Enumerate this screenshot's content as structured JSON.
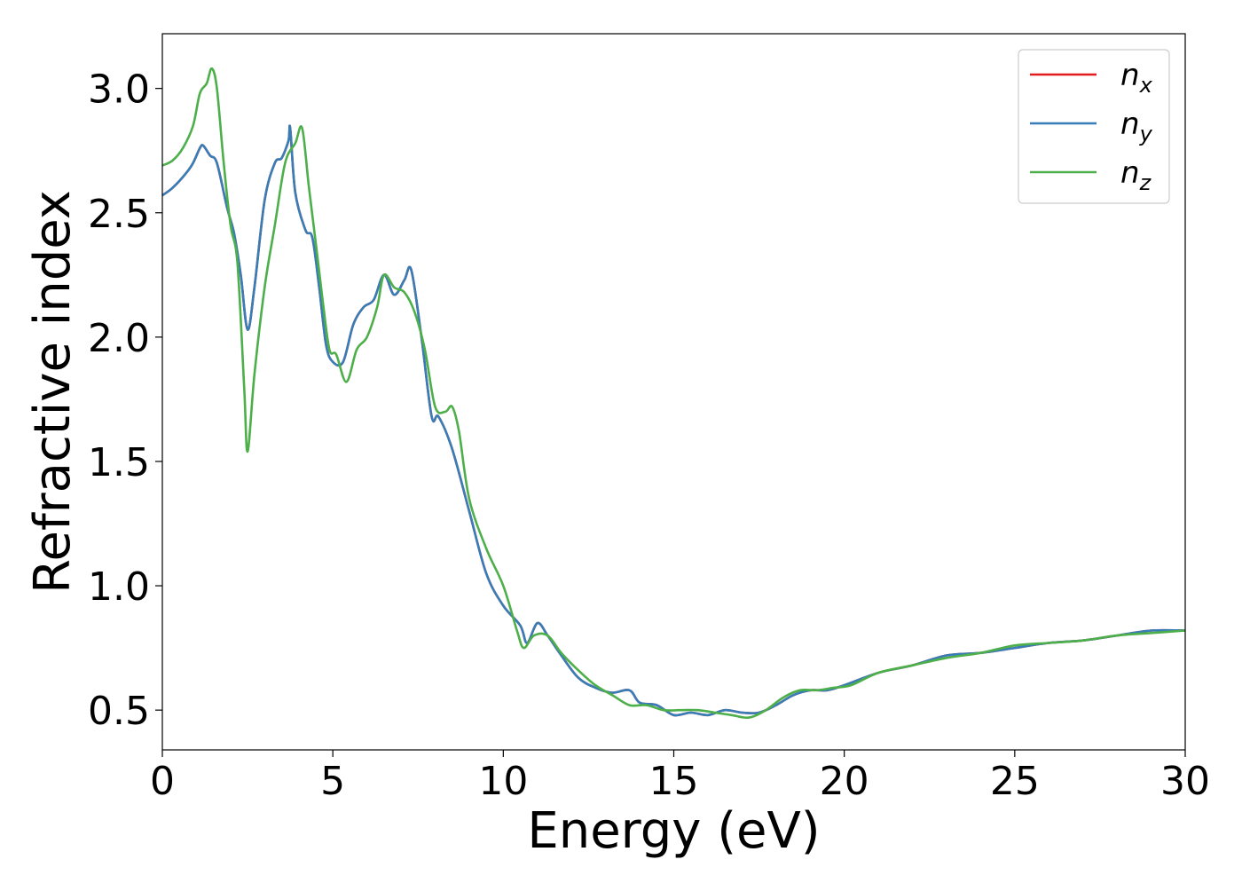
{
  "colors": {
    "n_x": "#e41a1c",
    "n_y": "#377eb8",
    "n_z": "#4daf4a"
  },
  "chart_data": {
    "type": "line",
    "title": "",
    "xlabel": "Energy (eV)",
    "ylabel": "Refractive index",
    "xlim": [
      0,
      30
    ],
    "ylim": [
      0.34,
      3.22
    ],
    "xticks": [
      0,
      5,
      10,
      15,
      20,
      25,
      30
    ],
    "xtick_labels": [
      "0",
      "5",
      "10",
      "15",
      "20",
      "25",
      "30"
    ],
    "yticks": [
      0.5,
      1.0,
      1.5,
      2.0,
      2.5,
      3.0
    ],
    "ytick_labels": [
      "0.5",
      "1.0",
      "1.5",
      "2.0",
      "2.5",
      "3.0"
    ],
    "grid": false,
    "legend": {
      "position": "top-right",
      "entries": [
        {
          "key": "n_x",
          "base": "n",
          "sub": "x"
        },
        {
          "key": "n_y",
          "base": "n",
          "sub": "y"
        },
        {
          "key": "n_z",
          "base": "n",
          "sub": "z"
        }
      ]
    },
    "series": [
      {
        "name": "n_x",
        "x": [
          0,
          0.3,
          0.7,
          0.9,
          1.1,
          1.2,
          1.4,
          1.6,
          1.9,
          2.1,
          2.3,
          2.5,
          2.7,
          3.0,
          3.3,
          3.5,
          3.7,
          3.75,
          3.9,
          4.2,
          4.4,
          4.6,
          4.8,
          5.0,
          5.3,
          5.6,
          5.9,
          6.2,
          6.5,
          6.8,
          7.1,
          7.3,
          7.6,
          7.9,
          8.1,
          8.5,
          9.0,
          9.5,
          10.0,
          10.5,
          10.7,
          11.0,
          11.3,
          11.7,
          12.2,
          12.7,
          13.2,
          13.7,
          14.0,
          14.5,
          15.0,
          15.5,
          16.0,
          16.5,
          17.0,
          17.5,
          18.0,
          18.5,
          19.0,
          19.5,
          20.0,
          21.0,
          22.0,
          23.0,
          24.0,
          25.0,
          26.0,
          27.0,
          28.0,
          29.0,
          30.0
        ],
        "y": [
          2.57,
          2.6,
          2.66,
          2.7,
          2.76,
          2.77,
          2.73,
          2.7,
          2.52,
          2.42,
          2.25,
          2.03,
          2.2,
          2.55,
          2.7,
          2.72,
          2.79,
          2.84,
          2.58,
          2.43,
          2.4,
          2.2,
          1.97,
          1.9,
          1.9,
          2.05,
          2.12,
          2.15,
          2.25,
          2.17,
          2.23,
          2.27,
          2.0,
          1.68,
          1.68,
          1.55,
          1.3,
          1.05,
          0.92,
          0.84,
          0.77,
          0.85,
          0.8,
          0.72,
          0.63,
          0.59,
          0.57,
          0.58,
          0.53,
          0.52,
          0.48,
          0.49,
          0.48,
          0.5,
          0.49,
          0.49,
          0.52,
          0.56,
          0.58,
          0.58,
          0.6,
          0.65,
          0.68,
          0.72,
          0.73,
          0.75,
          0.77,
          0.78,
          0.8,
          0.82,
          0.82
        ]
      },
      {
        "name": "n_y",
        "x": [
          0,
          0.3,
          0.7,
          0.9,
          1.1,
          1.2,
          1.4,
          1.6,
          1.9,
          2.1,
          2.3,
          2.5,
          2.7,
          3.0,
          3.3,
          3.5,
          3.7,
          3.75,
          3.9,
          4.2,
          4.4,
          4.6,
          4.8,
          5.0,
          5.3,
          5.6,
          5.9,
          6.2,
          6.5,
          6.8,
          7.1,
          7.3,
          7.6,
          7.9,
          8.1,
          8.5,
          9.0,
          9.5,
          10.0,
          10.5,
          10.7,
          11.0,
          11.3,
          11.7,
          12.2,
          12.7,
          13.2,
          13.7,
          14.0,
          14.5,
          15.0,
          15.5,
          16.0,
          16.5,
          17.0,
          17.5,
          18.0,
          18.5,
          19.0,
          19.5,
          20.0,
          21.0,
          22.0,
          23.0,
          24.0,
          25.0,
          26.0,
          27.0,
          28.0,
          29.0,
          30.0
        ],
        "y": [
          2.57,
          2.6,
          2.66,
          2.7,
          2.76,
          2.77,
          2.73,
          2.7,
          2.52,
          2.42,
          2.25,
          2.03,
          2.2,
          2.55,
          2.7,
          2.72,
          2.79,
          2.84,
          2.58,
          2.43,
          2.4,
          2.2,
          1.97,
          1.9,
          1.9,
          2.05,
          2.12,
          2.15,
          2.25,
          2.17,
          2.23,
          2.27,
          2.0,
          1.68,
          1.68,
          1.55,
          1.3,
          1.05,
          0.92,
          0.84,
          0.77,
          0.85,
          0.8,
          0.72,
          0.63,
          0.59,
          0.57,
          0.58,
          0.53,
          0.52,
          0.48,
          0.49,
          0.48,
          0.5,
          0.49,
          0.49,
          0.52,
          0.56,
          0.58,
          0.58,
          0.6,
          0.65,
          0.68,
          0.72,
          0.73,
          0.75,
          0.77,
          0.78,
          0.8,
          0.82,
          0.82
        ]
      },
      {
        "name": "n_z",
        "x": [
          0,
          0.3,
          0.6,
          0.9,
          1.1,
          1.3,
          1.45,
          1.6,
          1.8,
          2.0,
          2.2,
          2.4,
          2.5,
          2.7,
          3.0,
          3.3,
          3.6,
          3.9,
          4.1,
          4.3,
          4.5,
          4.7,
          4.9,
          5.1,
          5.4,
          5.7,
          6.0,
          6.3,
          6.5,
          6.8,
          7.1,
          7.4,
          7.7,
          8.0,
          8.3,
          8.5,
          8.7,
          9.0,
          9.5,
          10.0,
          10.4,
          10.6,
          10.9,
          11.3,
          11.7,
          12.2,
          12.7,
          13.2,
          13.7,
          14.2,
          14.7,
          15.2,
          15.7,
          16.2,
          16.7,
          17.2,
          17.7,
          18.2,
          18.7,
          19.2,
          19.7,
          20.2,
          21.0,
          22.0,
          23.0,
          24.0,
          25.0,
          26.0,
          27.0,
          28.0,
          29.0,
          30.0
        ],
        "y": [
          2.69,
          2.71,
          2.76,
          2.85,
          2.98,
          3.02,
          3.08,
          3.0,
          2.7,
          2.45,
          2.3,
          1.8,
          1.54,
          1.85,
          2.2,
          2.45,
          2.7,
          2.78,
          2.84,
          2.6,
          2.38,
          2.15,
          1.95,
          1.93,
          1.82,
          1.95,
          2.0,
          2.12,
          2.25,
          2.2,
          2.18,
          2.1,
          1.95,
          1.72,
          1.7,
          1.72,
          1.62,
          1.35,
          1.15,
          1.0,
          0.82,
          0.75,
          0.8,
          0.8,
          0.73,
          0.66,
          0.6,
          0.56,
          0.52,
          0.52,
          0.5,
          0.5,
          0.5,
          0.49,
          0.48,
          0.47,
          0.5,
          0.55,
          0.58,
          0.58,
          0.59,
          0.6,
          0.65,
          0.68,
          0.71,
          0.73,
          0.76,
          0.77,
          0.78,
          0.8,
          0.81,
          0.82
        ]
      }
    ]
  }
}
